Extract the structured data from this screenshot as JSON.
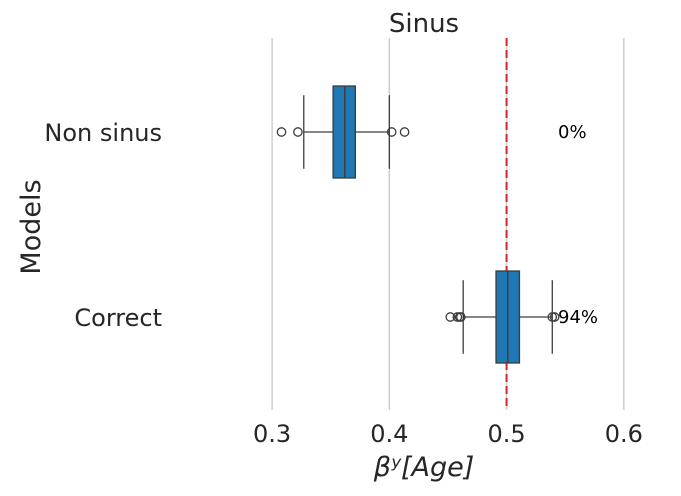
{
  "chart_data": {
    "type": "boxplot",
    "orientation": "horizontal",
    "title": "Sinus",
    "xlabel": "βʸ[Age]",
    "ylabel": "Models",
    "xlim": [
      0.218,
      0.636
    ],
    "xticks": [
      0.3,
      0.4,
      0.5,
      0.6
    ],
    "xtick_labels": [
      "0.3",
      "0.4",
      "0.5",
      "0.6"
    ],
    "grid": "vertical",
    "reference_line": {
      "x": 0.5,
      "color": "#d62728",
      "style": "dashed"
    },
    "box_color": "#1f77b4",
    "line_color": "#3d3d3d",
    "categories": [
      "Non sinus",
      "Correct"
    ],
    "boxes": [
      {
        "category": "Non sinus",
        "whisker_low": 0.327,
        "q1": 0.352,
        "median": 0.362,
        "q3": 0.371,
        "whisker_high": 0.4,
        "outliers": [
          0.308,
          0.322,
          0.402,
          0.413
        ],
        "annotation": "0%"
      },
      {
        "category": "Correct",
        "whisker_low": 0.463,
        "q1": 0.491,
        "median": 0.501,
        "q3": 0.511,
        "whisker_high": 0.539,
        "outliers": [
          0.452,
          0.458,
          0.46,
          0.461,
          0.539,
          0.541
        ],
        "annotation": "94%"
      }
    ]
  }
}
